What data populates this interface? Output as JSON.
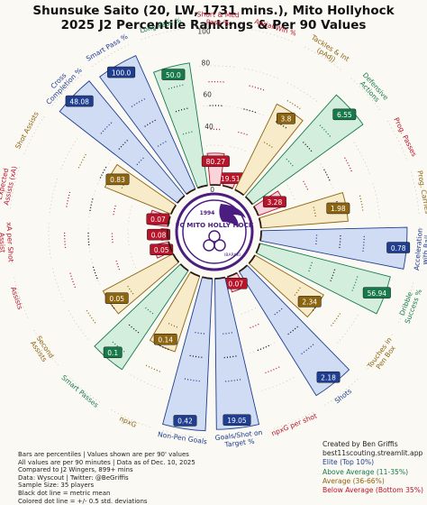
{
  "title": {
    "line1": "Shunsuke Saito (20, LW, 1731 mins.), Mito Hollyhock",
    "line2": "2025 J2 Percentile Rankings & Per 90 Values"
  },
  "logo": {
    "text_top": "1994",
    "text_main": "FC MITO HOLLY HOCK",
    "text_sub": "IBARAKI"
  },
  "notes": [
    "Bars are percentiles | Values shown are per 90' values",
    "All values are per 90 minutes | Data as of Dec. 10, 2025",
    "Compared to J2 Wingers, 899+ mins",
    "Data: Wyscout | Twitter: @BeGriffis",
    "Sample Size: 35 players",
    "Black dot line = metric mean",
    "Colored dot line = +/- 0.5 std. deviations"
  ],
  "credit": {
    "line1": "Created by Ben Griffis",
    "line2": "best11scouting.streamlit.app",
    "elite": "Elite (Top 10%)",
    "above": "Above Average (11-35%)",
    "average": "Average (36-66%)",
    "below": "Below Average (Bottom 35%)"
  },
  "colors": {
    "elite": "#1f3e8f",
    "above": "#177a4a",
    "average": "#8d6510",
    "below": "#b8142a"
  },
  "chart_data": {
    "type": "radial_bar",
    "scale_ticks": [
      "0",
      "20",
      "40",
      "60",
      "80",
      "100"
    ],
    "metrics": [
      {
        "label": "Aerial Win %",
        "value": "19.51",
        "percentile": 2,
        "tier": "below"
      },
      {
        "label": "Tackles & Int (pAdj)",
        "value": "3.8",
        "percentile": 60,
        "tier": "average"
      },
      {
        "label": "Defensive Actions",
        "value": "6.55",
        "percentile": 86,
        "tier": "above"
      },
      {
        "label": "Prog. Passes",
        "value": "3.28",
        "percentile": 18,
        "tier": "below"
      },
      {
        "label": "Prog. Carries",
        "value": "1.98",
        "percentile": 55,
        "tier": "average"
      },
      {
        "label": "Acceleration with Ball",
        "value": "0.78",
        "percentile": 92,
        "tier": "elite"
      },
      {
        "label": "Dribble Success %",
        "value": "56.94",
        "percentile": 85,
        "tier": "above"
      },
      {
        "label": "Touches in Pen Box",
        "value": "2.34",
        "percentile": 50,
        "tier": "average"
      },
      {
        "label": "Shots",
        "value": "2.18",
        "percentile": 92,
        "tier": "elite"
      },
      {
        "label": "npxG per shot",
        "value": "0.07",
        "percentile": 10,
        "tier": "below"
      },
      {
        "label": "Goals/Shot on Target %",
        "value": "19.05",
        "percentile": 95,
        "tier": "elite"
      },
      {
        "label": "Non-Pen Goals",
        "value": "0.42",
        "percentile": 96,
        "tier": "elite"
      },
      {
        "label": "npxG",
        "value": "0.14",
        "percentile": 50,
        "tier": "average"
      },
      {
        "label": "Smart Passes",
        "value": "0.1",
        "percentile": 75,
        "tier": "above"
      },
      {
        "label": "Second Assists",
        "value": "0.05",
        "percentile": 50,
        "tier": "average"
      },
      {
        "label": "Assists",
        "value": "0.05",
        "percentile": 10,
        "tier": "below"
      },
      {
        "label": "xA per Shot Assist",
        "value": "0.08",
        "percentile": 4,
        "tier": "below"
      },
      {
        "label": "Expected Assists (xA)",
        "value": "0.07",
        "percentile": 12,
        "tier": "below"
      },
      {
        "label": "Shot Assists",
        "value": "0.83",
        "percentile": 45,
        "tier": "average"
      },
      {
        "label": "Cross Completion %",
        "value": "48.08",
        "percentile": 94,
        "tier": "elite"
      },
      {
        "label": "Smart Pass %",
        "value": "100.0",
        "percentile": 92,
        "tier": "elite"
      },
      {
        "label": "Long Pass %",
        "value": "50.0",
        "percentile": 78,
        "tier": "above"
      },
      {
        "label": "Short & Med Pass %",
        "value": "80.27",
        "percentile": 20,
        "tier": "below"
      }
    ]
  }
}
